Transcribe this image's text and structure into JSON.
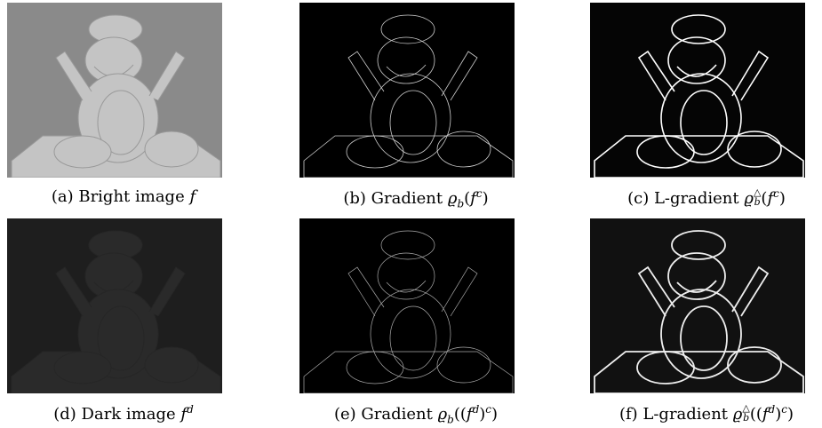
{
  "panels": [
    {
      "caption": [
        {
          "text": "(a) Bright image "
        },
        {
          "text": "f",
          "style": "italic"
        }
      ]
    },
    {
      "caption": [
        {
          "text": "(b) Gradient "
        },
        {
          "text": "ϱ",
          "style": "italic"
        },
        {
          "text": "b",
          "style": "sub"
        },
        {
          "text": "("
        },
        {
          "text": "f",
          "style": "italic"
        },
        {
          "text": "c",
          "style": "sup"
        },
        {
          "text": ")"
        }
      ]
    },
    {
      "caption": [
        {
          "text": "(c) L-gradient "
        },
        {
          "text": "ϱ",
          "style": "italic"
        },
        {
          "sup": "△",
          "sub": "b"
        },
        {
          "text": "("
        },
        {
          "text": "f",
          "style": "italic"
        },
        {
          "text": "c",
          "style": "sup"
        },
        {
          "text": ")"
        }
      ]
    },
    {
      "caption": [
        {
          "text": "(d) Dark image "
        },
        {
          "text": "f",
          "style": "italic"
        },
        {
          "text": "d",
          "style": "sup"
        }
      ]
    },
    {
      "caption": [
        {
          "text": "(e) Gradient "
        },
        {
          "text": "ϱ",
          "style": "italic"
        },
        {
          "text": "b",
          "style": "sub"
        },
        {
          "text": "(("
        },
        {
          "text": "f",
          "style": "italic"
        },
        {
          "text": "d",
          "style": "sup"
        },
        {
          "text": ")"
        },
        {
          "text": "c",
          "style": "sup"
        },
        {
          "text": ")"
        }
      ]
    },
    {
      "caption": [
        {
          "text": "(f) L-gradient "
        },
        {
          "text": "ϱ",
          "style": "italic"
        },
        {
          "sup": "△",
          "sub": "b"
        },
        {
          "text": "(("
        },
        {
          "text": "f",
          "style": "italic"
        },
        {
          "text": "d",
          "style": "sup"
        },
        {
          "text": ")"
        },
        {
          "text": "c",
          "style": "sup"
        },
        {
          "text": ")"
        }
      ]
    }
  ]
}
